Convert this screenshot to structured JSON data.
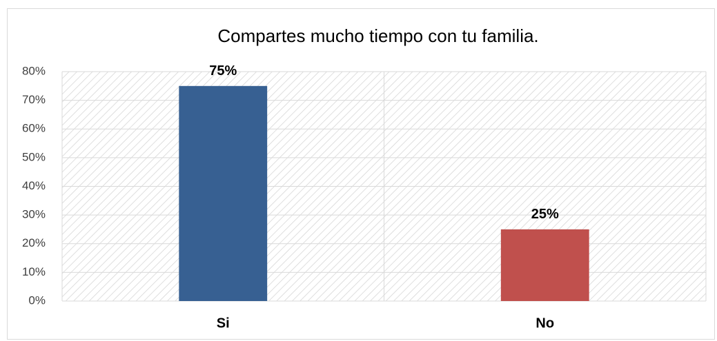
{
  "chart_data": {
    "type": "bar",
    "title": "Compartes mucho tiempo con tu familia.",
    "categories": [
      "Si",
      "No"
    ],
    "values": [
      75,
      25
    ],
    "value_labels": [
      "75%",
      "25%"
    ],
    "colors": [
      "#376092",
      "#c0504d"
    ],
    "ylim": [
      0,
      80
    ],
    "yticks": [
      {
        "value": 0,
        "label": "0%"
      },
      {
        "value": 10,
        "label": "10%"
      },
      {
        "value": 20,
        "label": "20%"
      },
      {
        "value": 30,
        "label": "30%"
      },
      {
        "value": 40,
        "label": "40%"
      },
      {
        "value": 50,
        "label": "50%"
      },
      {
        "value": 60,
        "label": "60%"
      },
      {
        "value": 70,
        "label": "70%"
      },
      {
        "value": 80,
        "label": "80%"
      }
    ],
    "grid": true
  }
}
